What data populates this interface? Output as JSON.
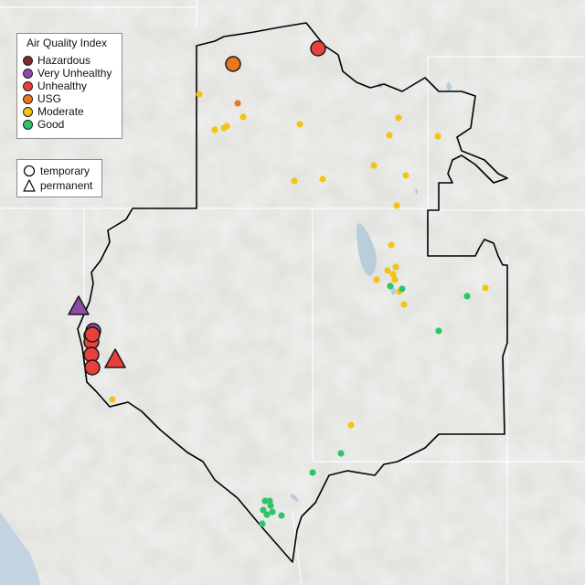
{
  "legend": {
    "title": "Air Quality Index",
    "categories": [
      {
        "label": "Hazardous",
        "color": "#7e2c2a"
      },
      {
        "label": "Very Unhealthy",
        "color": "#8e4ba8"
      },
      {
        "label": "Unhealthy",
        "color": "#e8403a"
      },
      {
        "label": "USG",
        "color": "#e8781e"
      },
      {
        "label": "Moderate",
        "color": "#f2c414"
      },
      {
        "label": "Good",
        "color": "#2fc46a"
      }
    ],
    "types": [
      {
        "label": "temporary",
        "shape": "circle"
      },
      {
        "label": "permanent",
        "shape": "triangle"
      }
    ]
  },
  "monitors": [
    {
      "aqi": "Unhealthy",
      "type": "temporary",
      "size": "large"
    },
    {
      "aqi": "USG",
      "type": "temporary",
      "size": "large"
    },
    {
      "aqi": "Very Unhealthy",
      "type": "permanent",
      "size": "large"
    },
    {
      "aqi": "Unhealthy",
      "type": "permanent",
      "size": "large"
    },
    {
      "aqi": "Very Unhealthy",
      "type": "temporary",
      "size": "large"
    },
    {
      "aqi": "Unhealthy",
      "type": "temporary",
      "size": "large"
    },
    {
      "aqi": "Unhealthy",
      "type": "temporary",
      "size": "large"
    },
    {
      "aqi": "Unhealthy",
      "type": "temporary",
      "size": "large"
    },
    {
      "aqi": "Unhealthy",
      "type": "temporary",
      "size": "large"
    },
    {
      "aqi": "Unhealthy",
      "type": "temporary",
      "size": "large"
    },
    {
      "aqi": "USG",
      "type": "temporary",
      "size": "small"
    },
    {
      "aqi": "Moderate",
      "type": "temporary",
      "size": "small"
    },
    {
      "aqi": "Moderate",
      "type": "temporary",
      "size": "small"
    },
    {
      "aqi": "Moderate",
      "type": "temporary",
      "size": "small"
    },
    {
      "aqi": "Moderate",
      "type": "temporary",
      "size": "small"
    },
    {
      "aqi": "Moderate",
      "type": "temporary",
      "size": "small"
    },
    {
      "aqi": "Moderate",
      "type": "temporary",
      "size": "small"
    },
    {
      "aqi": "Moderate",
      "type": "temporary",
      "size": "small"
    },
    {
      "aqi": "Moderate",
      "type": "temporary",
      "size": "small"
    },
    {
      "aqi": "Moderate",
      "type": "temporary",
      "size": "small"
    },
    {
      "aqi": "Moderate",
      "type": "temporary",
      "size": "small"
    },
    {
      "aqi": "Moderate",
      "type": "temporary",
      "size": "small"
    },
    {
      "aqi": "Moderate",
      "type": "temporary",
      "size": "small"
    },
    {
      "aqi": "Moderate",
      "type": "temporary",
      "size": "small"
    },
    {
      "aqi": "Moderate",
      "type": "temporary",
      "size": "small"
    },
    {
      "aqi": "Moderate",
      "type": "temporary",
      "size": "small"
    },
    {
      "aqi": "Moderate",
      "type": "temporary",
      "size": "small"
    },
    {
      "aqi": "Moderate",
      "type": "temporary",
      "size": "small"
    },
    {
      "aqi": "Moderate",
      "type": "temporary",
      "size": "small"
    },
    {
      "aqi": "Moderate",
      "type": "temporary",
      "size": "small"
    },
    {
      "aqi": "Moderate",
      "type": "temporary",
      "size": "small"
    },
    {
      "aqi": "Moderate",
      "type": "temporary",
      "size": "small"
    },
    {
      "aqi": "Moderate",
      "type": "temporary",
      "size": "small"
    },
    {
      "aqi": "Moderate",
      "type": "temporary",
      "size": "small"
    },
    {
      "aqi": "Moderate",
      "type": "temporary",
      "size": "small"
    },
    {
      "aqi": "Moderate",
      "type": "temporary",
      "size": "small"
    },
    {
      "aqi": "Good",
      "type": "temporary",
      "size": "small"
    },
    {
      "aqi": "Good",
      "type": "temporary",
      "size": "small"
    },
    {
      "aqi": "Good",
      "type": "temporary",
      "size": "small"
    },
    {
      "aqi": "Good",
      "type": "temporary",
      "size": "small"
    },
    {
      "aqi": "Good",
      "type": "temporary",
      "size": "small"
    },
    {
      "aqi": "Good",
      "type": "temporary",
      "size": "small"
    },
    {
      "aqi": "Good",
      "type": "temporary",
      "size": "small"
    },
    {
      "aqi": "Good",
      "type": "temporary",
      "size": "small"
    },
    {
      "aqi": "Good",
      "type": "temporary",
      "size": "small"
    },
    {
      "aqi": "Good",
      "type": "temporary",
      "size": "small"
    },
    {
      "aqi": "Good",
      "type": "temporary",
      "size": "small"
    },
    {
      "aqi": "Good",
      "type": "temporary",
      "size": "small"
    },
    {
      "aqi": "Good",
      "type": "temporary",
      "size": "small"
    },
    {
      "aqi": "Good",
      "type": "temporary",
      "size": "small"
    }
  ]
}
